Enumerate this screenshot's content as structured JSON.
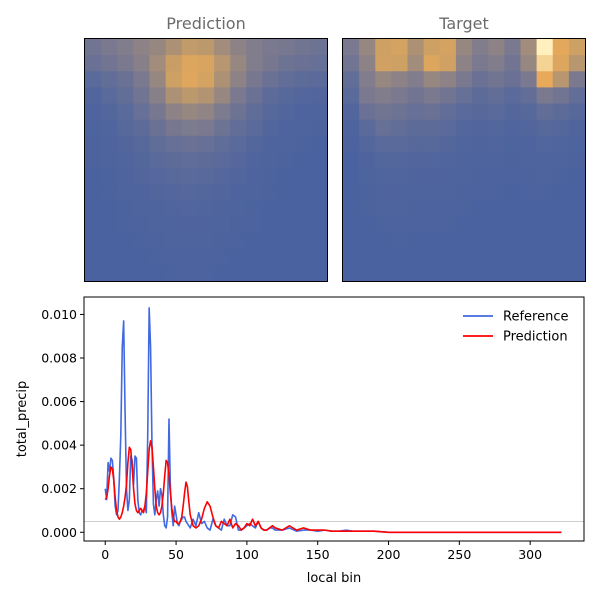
{
  "panels": {
    "prediction_title": "Prediction",
    "target_title": "Target"
  },
  "colors": {
    "background_field": "#4a62a0",
    "reference_line": "#4169e1",
    "prediction_line": "#ff0000",
    "threshold_line": "#bdbdbd"
  },
  "chart_data": [
    {
      "type": "heatmap",
      "name": "Prediction",
      "grid": [
        [
          0.25,
          0.3,
          0.35,
          0.4,
          0.45,
          0.55,
          0.65,
          0.62,
          0.5,
          0.4,
          0.35,
          0.3,
          0.28,
          0.25,
          0.22
        ],
        [
          0.2,
          0.25,
          0.3,
          0.38,
          0.5,
          0.68,
          0.8,
          0.78,
          0.6,
          0.45,
          0.35,
          0.28,
          0.22,
          0.2,
          0.18
        ],
        [
          0.1,
          0.15,
          0.2,
          0.3,
          0.45,
          0.7,
          0.82,
          0.75,
          0.55,
          0.4,
          0.28,
          0.2,
          0.15,
          0.12,
          0.1
        ],
        [
          0.05,
          0.1,
          0.15,
          0.25,
          0.38,
          0.55,
          0.62,
          0.58,
          0.45,
          0.3,
          0.2,
          0.12,
          0.08,
          0.06,
          0.05
        ],
        [
          0.03,
          0.06,
          0.1,
          0.18,
          0.28,
          0.4,
          0.45,
          0.42,
          0.32,
          0.22,
          0.14,
          0.08,
          0.05,
          0.03,
          0.02
        ],
        [
          0.02,
          0.04,
          0.08,
          0.12,
          0.2,
          0.28,
          0.32,
          0.3,
          0.22,
          0.15,
          0.1,
          0.05,
          0.03,
          0.02,
          0.01
        ],
        [
          0.01,
          0.03,
          0.05,
          0.08,
          0.14,
          0.18,
          0.2,
          0.18,
          0.14,
          0.1,
          0.06,
          0.03,
          0.02,
          0.01,
          0.0
        ],
        [
          0.01,
          0.02,
          0.04,
          0.06,
          0.1,
          0.12,
          0.14,
          0.12,
          0.1,
          0.07,
          0.04,
          0.02,
          0.01,
          0.0,
          0.0
        ],
        [
          0.0,
          0.01,
          0.03,
          0.05,
          0.07,
          0.09,
          0.1,
          0.09,
          0.07,
          0.05,
          0.03,
          0.01,
          0.0,
          0.0,
          0.0
        ],
        [
          0.0,
          0.01,
          0.02,
          0.03,
          0.05,
          0.06,
          0.07,
          0.06,
          0.05,
          0.03,
          0.02,
          0.01,
          0.0,
          0.0,
          0.0
        ],
        [
          0.0,
          0.0,
          0.01,
          0.02,
          0.03,
          0.04,
          0.05,
          0.04,
          0.03,
          0.02,
          0.01,
          0.0,
          0.0,
          0.0,
          0.0
        ],
        [
          0.0,
          0.0,
          0.01,
          0.01,
          0.02,
          0.03,
          0.03,
          0.03,
          0.02,
          0.01,
          0.01,
          0.0,
          0.0,
          0.0,
          0.0
        ],
        [
          0.0,
          0.0,
          0.0,
          0.01,
          0.01,
          0.02,
          0.02,
          0.02,
          0.01,
          0.01,
          0.0,
          0.0,
          0.0,
          0.0,
          0.0
        ],
        [
          0.0,
          0.0,
          0.0,
          0.0,
          0.01,
          0.01,
          0.01,
          0.01,
          0.01,
          0.0,
          0.0,
          0.0,
          0.0,
          0.0,
          0.0
        ],
        [
          0.0,
          0.0,
          0.0,
          0.0,
          0.0,
          0.01,
          0.01,
          0.01,
          0.0,
          0.0,
          0.0,
          0.0,
          0.0,
          0.0,
          0.0
        ]
      ]
    },
    {
      "type": "heatmap",
      "name": "Target",
      "grid": [
        [
          0.3,
          0.45,
          0.7,
          0.75,
          0.55,
          0.7,
          0.75,
          0.45,
          0.35,
          0.4,
          0.3,
          0.5,
          1.0,
          0.85,
          0.7
        ],
        [
          0.25,
          0.4,
          0.72,
          0.7,
          0.5,
          0.8,
          0.72,
          0.4,
          0.3,
          0.35,
          0.25,
          0.45,
          0.95,
          0.8,
          0.6
        ],
        [
          0.15,
          0.35,
          0.45,
          0.4,
          0.35,
          0.45,
          0.4,
          0.3,
          0.2,
          0.25,
          0.2,
          0.3,
          0.88,
          0.6,
          0.3
        ],
        [
          0.1,
          0.3,
          0.35,
          0.3,
          0.25,
          0.3,
          0.25,
          0.18,
          0.12,
          0.15,
          0.1,
          0.15,
          0.3,
          0.25,
          0.15
        ],
        [
          0.05,
          0.2,
          0.25,
          0.22,
          0.18,
          0.2,
          0.15,
          0.1,
          0.08,
          0.1,
          0.06,
          0.08,
          0.15,
          0.12,
          0.08
        ],
        [
          0.02,
          0.1,
          0.18,
          0.15,
          0.12,
          0.12,
          0.1,
          0.06,
          0.05,
          0.06,
          0.04,
          0.05,
          0.08,
          0.06,
          0.04
        ],
        [
          0.01,
          0.06,
          0.1,
          0.1,
          0.08,
          0.08,
          0.06,
          0.04,
          0.03,
          0.04,
          0.02,
          0.03,
          0.05,
          0.04,
          0.02
        ],
        [
          0.0,
          0.03,
          0.06,
          0.06,
          0.05,
          0.05,
          0.04,
          0.03,
          0.02,
          0.02,
          0.01,
          0.02,
          0.03,
          0.02,
          0.01
        ],
        [
          0.0,
          0.02,
          0.04,
          0.04,
          0.03,
          0.03,
          0.03,
          0.02,
          0.01,
          0.01,
          0.01,
          0.01,
          0.02,
          0.01,
          0.0
        ],
        [
          0.0,
          0.01,
          0.03,
          0.03,
          0.02,
          0.02,
          0.02,
          0.01,
          0.01,
          0.01,
          0.0,
          0.01,
          0.01,
          0.0,
          0.0
        ],
        [
          0.0,
          0.01,
          0.02,
          0.02,
          0.01,
          0.01,
          0.01,
          0.01,
          0.0,
          0.0,
          0.0,
          0.0,
          0.0,
          0.0,
          0.0
        ],
        [
          0.0,
          0.0,
          0.01,
          0.01,
          0.01,
          0.01,
          0.01,
          0.0,
          0.0,
          0.0,
          0.0,
          0.0,
          0.0,
          0.0,
          0.0
        ],
        [
          0.0,
          0.0,
          0.0,
          0.01,
          0.0,
          0.0,
          0.0,
          0.0,
          0.0,
          0.0,
          0.0,
          0.0,
          0.0,
          0.0,
          0.0
        ],
        [
          0.0,
          0.0,
          0.0,
          0.0,
          0.0,
          0.0,
          0.0,
          0.0,
          0.0,
          0.0,
          0.0,
          0.0,
          0.0,
          0.0,
          0.0
        ],
        [
          0.0,
          0.0,
          0.0,
          0.0,
          0.0,
          0.0,
          0.0,
          0.0,
          0.0,
          0.0,
          0.0,
          0.0,
          0.0,
          0.0,
          0.0
        ]
      ]
    },
    {
      "type": "line",
      "xlabel": "local bin",
      "ylabel": "total_precip",
      "xlim": [
        -15,
        338
      ],
      "ylim": [
        -0.0004,
        0.0108
      ],
      "xticks": [
        0,
        50,
        100,
        150,
        200,
        250,
        300
      ],
      "yticks": [
        0.0,
        0.002,
        0.004,
        0.006,
        0.008,
        0.01
      ],
      "ytick_labels": [
        "0.000",
        "0.002",
        "0.004",
        "0.006",
        "0.008",
        "0.010"
      ],
      "threshold": 0.0005,
      "legend_position": "top-right",
      "series": [
        {
          "name": "Reference",
          "x": [
            0,
            1,
            2,
            3,
            4,
            5,
            6,
            7,
            8,
            9,
            10,
            11,
            12,
            13,
            14,
            15,
            16,
            17,
            18,
            19,
            20,
            21,
            22,
            23,
            24,
            25,
            26,
            27,
            28,
            29,
            30,
            31,
            32,
            33,
            34,
            35,
            36,
            37,
            38,
            39,
            40,
            41,
            42,
            43,
            44,
            45,
            46,
            47,
            48,
            49,
            50,
            51,
            52,
            53,
            54,
            55,
            56,
            57,
            58,
            59,
            60,
            62,
            64,
            66,
            68,
            70,
            72,
            74,
            76,
            78,
            80,
            82,
            84,
            86,
            88,
            90,
            92,
            94,
            96,
            98,
            100,
            102,
            104,
            106,
            108,
            110,
            112,
            114,
            116,
            118,
            120,
            125,
            130,
            135,
            140,
            145,
            150,
            155,
            160,
            165,
            170,
            175,
            180,
            185,
            190,
            200,
            220,
            250,
            280,
            300,
            322
          ],
          "y": [
            0.002,
            0.0015,
            0.0032,
            0.0028,
            0.0034,
            0.0033,
            0.0025,
            0.0012,
            0.0008,
            0.001,
            0.0025,
            0.0045,
            0.0085,
            0.0097,
            0.0055,
            0.002,
            0.001,
            0.0015,
            0.0035,
            0.0033,
            0.0022,
            0.0035,
            0.0034,
            0.0015,
            0.0009,
            0.0008,
            0.001,
            0.001,
            0.0012,
            0.0009,
            0.0045,
            0.0103,
            0.0085,
            0.004,
            0.0013,
            0.0008,
            0.0015,
            0.0019,
            0.0012,
            0.002,
            0.0017,
            0.0008,
            0.0003,
            0.0002,
            0.0007,
            0.0052,
            0.002,
            0.0009,
            0.0003,
            0.0012,
            0.0008,
            0.0004,
            0.0003,
            0.0005,
            0.0006,
            0.0007,
            0.0007,
            0.0005,
            0.0004,
            0.0003,
            0.0002,
            0.0006,
            0.0003,
            0.0009,
            0.0004,
            0.0005,
            0.0002,
            0.0001,
            0.0006,
            0.0003,
            0.0002,
            0.0001,
            0.0006,
            0.0003,
            0.0003,
            0.0008,
            0.0007,
            0.0001,
            0.0001,
            0.0002,
            0.0003,
            0.0004,
            0.0003,
            0.0002,
            0.0005,
            0.0002,
            0.0001,
            0.0001,
            0.0002,
            0.0002,
            0.0001,
            0.0001,
            0.0002,
            5e-05,
            0.0001,
            0.0001,
            5e-05,
            0.0001,
            5e-05,
            5e-05,
            0.0001,
            5e-05,
            5e-05,
            5e-05,
            5e-05,
            0.0,
            0.0,
            0.0,
            0.0,
            0.0,
            0.0
          ]
        },
        {
          "name": "Prediction",
          "x": [
            0,
            1,
            2,
            3,
            4,
            5,
            6,
            7,
            8,
            9,
            10,
            11,
            12,
            13,
            14,
            15,
            16,
            17,
            18,
            19,
            20,
            21,
            22,
            23,
            24,
            25,
            26,
            27,
            28,
            29,
            30,
            31,
            32,
            33,
            34,
            35,
            36,
            37,
            38,
            39,
            40,
            41,
            42,
            43,
            44,
            45,
            46,
            47,
            48,
            49,
            50,
            51,
            52,
            53,
            54,
            55,
            56,
            57,
            58,
            59,
            60,
            62,
            64,
            66,
            68,
            70,
            72,
            74,
            76,
            78,
            80,
            82,
            84,
            86,
            88,
            90,
            92,
            94,
            96,
            98,
            100,
            102,
            104,
            106,
            108,
            110,
            112,
            114,
            116,
            118,
            120,
            125,
            130,
            135,
            140,
            145,
            150,
            155,
            160,
            165,
            170,
            175,
            180,
            185,
            190,
            200,
            220,
            250,
            280,
            300,
            322
          ],
          "y": [
            0.0015,
            0.0016,
            0.002,
            0.0026,
            0.003,
            0.0029,
            0.0024,
            0.0016,
            0.001,
            0.0007,
            0.0006,
            0.0007,
            0.0009,
            0.0012,
            0.0016,
            0.0022,
            0.0032,
            0.0039,
            0.0038,
            0.003,
            0.002,
            0.0013,
            0.001,
            0.0009,
            0.001,
            0.0011,
            0.001,
            0.0009,
            0.0012,
            0.0018,
            0.0028,
            0.0038,
            0.0042,
            0.0039,
            0.003,
            0.002,
            0.0012,
            0.0009,
            0.0008,
            0.0009,
            0.0012,
            0.0018,
            0.0026,
            0.0033,
            0.0032,
            0.0026,
            0.0018,
            0.0011,
            0.0007,
            0.0005,
            0.0005,
            0.0004,
            0.0004,
            0.0005,
            0.0007,
            0.0012,
            0.0018,
            0.0023,
            0.0021,
            0.0014,
            0.0008,
            0.0003,
            0.0002,
            0.0003,
            0.0006,
            0.0011,
            0.0014,
            0.0012,
            0.0007,
            0.0003,
            0.0002,
            0.0005,
            0.0004,
            0.0003,
            0.0006,
            0.0002,
            0.0004,
            0.0003,
            0.0001,
            0.0002,
            0.0004,
            0.0003,
            0.0006,
            0.0003,
            0.0005,
            0.0002,
            0.0001,
            0.0001,
            0.0002,
            0.0003,
            0.0002,
            0.0001,
            0.0003,
            0.0001,
            0.0002,
            0.0001,
            0.0001,
            0.0001,
            5e-05,
            5e-05,
            5e-05,
            5e-05,
            5e-05,
            5e-05,
            5e-05,
            0.0,
            0.0,
            0.0,
            0.0,
            0.0,
            0.0
          ]
        }
      ]
    }
  ]
}
